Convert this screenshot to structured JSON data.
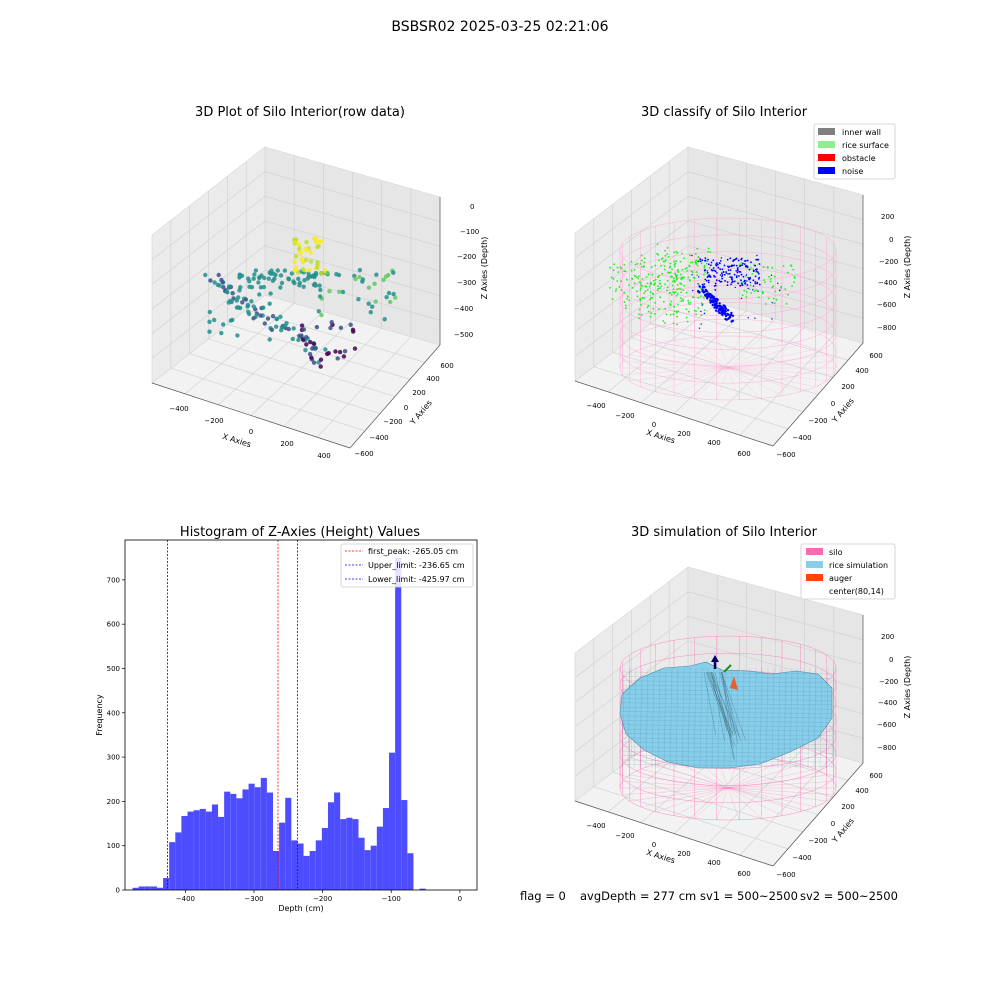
{
  "figure": {
    "suptitle": "BSBSR02 2025-03-25 02:21:06",
    "footer": {
      "flag": "flag = 0",
      "avg_depth": "avgDepth = 277 cm",
      "sv1": "sv1 = 500~2500",
      "sv2": "sv2 = 500~2500"
    }
  },
  "colors": {
    "inner_wall": "#808080",
    "rice_surface": "#90ee90",
    "obstacle": "#ff0000",
    "noise": "#0000ff",
    "silo": "#ff69b4",
    "rice_simulation": "#87ceeb",
    "auger": "#ff4500",
    "hist_bar": "#4d4dff",
    "peak_line": "#ff0000",
    "limit_line": "#0000ff"
  },
  "chart_data": [
    {
      "type": "scatter",
      "subtype": "3d",
      "title": "3D Plot of Silo Interior(row data)",
      "xlabel": "X Axies",
      "ylabel": "Y Axies",
      "zlabel": "Z Axies (Depth)",
      "xticks": [
        "−400",
        "−200",
        "0",
        "200",
        "400"
      ],
      "yticks": [
        "−600",
        "−400",
        "−200",
        "0",
        "200",
        "400",
        "600"
      ],
      "zticks": [
        "−500",
        "−400",
        "−300",
        "−200",
        "−100",
        "0"
      ],
      "colormap": "viridis"
    },
    {
      "type": "scatter",
      "subtype": "3d",
      "title": "3D classify of Silo Interior",
      "xlabel": "X Axies",
      "ylabel": "Y Axies",
      "zlabel": "Z Axies (Depth)",
      "xticks": [
        "−400",
        "−200",
        "0",
        "200",
        "400",
        "600"
      ],
      "yticks": [
        "−600",
        "−400",
        "−200",
        "0",
        "200",
        "400",
        "600"
      ],
      "zticks": [
        "−800",
        "−600",
        "−400",
        "−200",
        "0",
        "200"
      ],
      "legend": [
        "inner wall",
        "rice surface",
        "obstacle",
        "noise"
      ],
      "legend_position": "top-right"
    },
    {
      "type": "bar",
      "subtype": "histogram",
      "title": "Histogram of Z-Axies (Height) Values",
      "xlabel": "Depth (cm)",
      "ylabel": "Frequency",
      "xlim": [
        -488,
        25
      ],
      "ylim": [
        0,
        790
      ],
      "xticks": [
        -400,
        -300,
        -200,
        -100,
        0
      ],
      "xtick_labels": [
        "−400",
        "−300",
        "−200",
        "−100",
        "0"
      ],
      "yticks": [
        0,
        100,
        200,
        300,
        400,
        500,
        600,
        700
      ],
      "bin_start": -477,
      "bin_width": 8.9,
      "values": [
        5,
        8,
        8,
        8,
        5,
        27,
        108,
        130,
        167,
        177,
        180,
        183,
        177,
        193,
        165,
        222,
        217,
        207,
        227,
        240,
        232,
        253,
        220,
        88,
        152,
        208,
        112,
        105,
        77,
        88,
        112,
        140,
        198,
        220,
        160,
        163,
        160,
        118,
        90,
        100,
        143,
        185,
        310,
        750,
        203,
        83,
        0,
        3
      ],
      "lines": [
        {
          "label": "first_peak: -265.05 cm",
          "x": -265.05,
          "color": "#ff0000"
        },
        {
          "label": "Upper_limit: -236.65 cm",
          "x": -236.65,
          "color": "#0000ff"
        },
        {
          "label": "Lower_limit: -425.97 cm",
          "x": -425.97,
          "color": "#0000ff"
        }
      ],
      "legend_position": "top-right"
    },
    {
      "type": "area",
      "subtype": "3d-surface",
      "title": "3D simulation of Silo Interior",
      "xlabel": "X Axies",
      "ylabel": "Y Axies",
      "zlabel": "Z Axies (Depth)",
      "xticks": [
        "−400",
        "−200",
        "0",
        "200",
        "400",
        "600"
      ],
      "yticks": [
        "−600",
        "−400",
        "−200",
        "0",
        "200",
        "400",
        "600"
      ],
      "zticks": [
        "−800",
        "−600",
        "−400",
        "−200",
        "0",
        "200"
      ],
      "legend": [
        "silo",
        "rice simulation",
        "auger",
        "center(80,14)"
      ],
      "legend_position": "top-right"
    }
  ]
}
